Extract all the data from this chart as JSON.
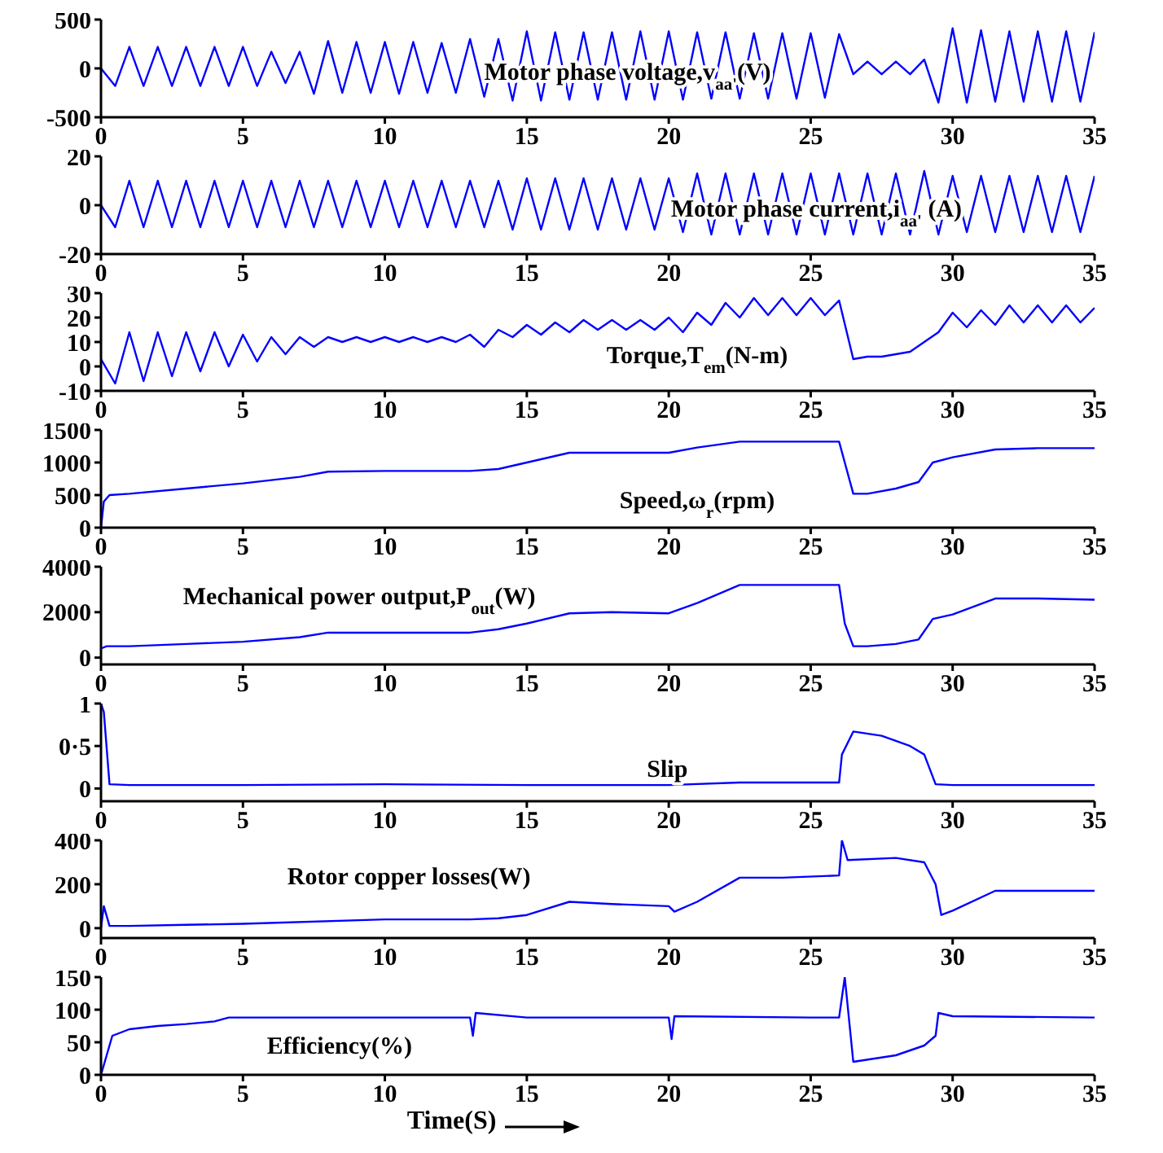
{
  "chart_data": [
    {
      "type": "line",
      "x": [
        0,
        0.5,
        1,
        1.5,
        2,
        2.5,
        3,
        3.5,
        4,
        4.5,
        5,
        5.5,
        6,
        6.5,
        7,
        7.5,
        8,
        8.5,
        9,
        9.5,
        10,
        10.5,
        11,
        11.5,
        12,
        12.5,
        13,
        13.5,
        14,
        14.5,
        15,
        15.5,
        16,
        16.5,
        17,
        17.5,
        18,
        18.5,
        19,
        19.5,
        20,
        20.5,
        21,
        21.5,
        22,
        22.5,
        23,
        23.5,
        24,
        24.5,
        25,
        25.5,
        26,
        26.5,
        27,
        27.5,
        28,
        28.5,
        29,
        29.5,
        30,
        30.5,
        31,
        31.5,
        32,
        32.5,
        33,
        33.5,
        34,
        34.5,
        35
      ],
      "series": [
        {
          "name": "Motor phase voltage,v$_{aa'}$(V)",
          "color": "#0000ff",
          "values": [
            0,
            -180,
            220,
            -180,
            220,
            -180,
            220,
            -180,
            220,
            -180,
            220,
            -180,
            170,
            -150,
            170,
            -260,
            280,
            -250,
            270,
            -250,
            270,
            -260,
            270,
            -250,
            260,
            -250,
            300,
            -290,
            300,
            -330,
            380,
            -330,
            370,
            -320,
            370,
            -320,
            370,
            -320,
            380,
            -320,
            380,
            -320,
            370,
            -310,
            370,
            -310,
            360,
            -310,
            360,
            -310,
            360,
            -300,
            350,
            -60,
            70,
            -60,
            70,
            -60,
            90,
            -350,
            410,
            -350,
            390,
            -340,
            380,
            -340,
            380,
            -340,
            380,
            -340,
            370
          ]
        }
      ],
      "xlim": [
        0,
        35
      ],
      "xticks": [
        0,
        5,
        10,
        15,
        20,
        25,
        30,
        35
      ],
      "ylim": [
        -500,
        500
      ],
      "yticks": [
        -500,
        0,
        500
      ]
    },
    {
      "type": "line",
      "x": [
        0,
        0.5,
        1,
        1.5,
        2,
        2.5,
        3,
        3.5,
        4,
        4.5,
        5,
        5.5,
        6,
        6.5,
        7,
        7.5,
        8,
        8.5,
        9,
        9.5,
        10,
        10.5,
        11,
        11.5,
        12,
        12.5,
        13,
        13.5,
        14,
        14.5,
        15,
        15.5,
        16,
        16.5,
        17,
        17.5,
        18,
        18.5,
        19,
        19.5,
        20,
        20.5,
        21,
        21.5,
        22,
        22.5,
        23,
        23.5,
        24,
        24.5,
        25,
        25.5,
        26,
        26.5,
        27,
        27.5,
        28,
        28.5,
        29,
        29.5,
        30,
        30.5,
        31,
        31.5,
        32,
        32.5,
        33,
        33.5,
        34,
        34.5,
        35
      ],
      "series": [
        {
          "name": "Motor phase current,i$_{aa'}$ (A)",
          "color": "#0000ff",
          "values": [
            0,
            -9,
            10,
            -9,
            10,
            -9,
            10,
            -9,
            10,
            -9,
            10,
            -9,
            10,
            -9,
            10,
            -9,
            10,
            -9,
            10,
            -9,
            10,
            -9,
            10,
            -9,
            10,
            -9,
            10,
            -9,
            10,
            -10,
            11,
            -10,
            11,
            -10,
            11,
            -10,
            11,
            -10,
            11,
            -10,
            11,
            -11,
            13,
            -12,
            13,
            -12,
            13,
            -12,
            13,
            -12,
            13,
            -12,
            13,
            -12,
            13,
            -12,
            13,
            -12,
            14,
            -12,
            12,
            -11,
            12,
            -11,
            12,
            -11,
            12,
            -11,
            12,
            -11,
            12
          ]
        }
      ],
      "xlim": [
        0,
        35
      ],
      "xticks": [
        0,
        5,
        10,
        15,
        20,
        25,
        30,
        35
      ],
      "ylim": [
        -20,
        20
      ],
      "yticks": [
        -20,
        0,
        20
      ]
    },
    {
      "type": "line",
      "x": [
        0,
        0.5,
        1,
        1.5,
        2,
        2.5,
        3,
        3.5,
        4,
        4.5,
        5,
        5.5,
        6,
        6.5,
        7,
        7.5,
        8,
        8.5,
        9,
        9.5,
        10,
        10.5,
        11,
        11.5,
        12,
        12.5,
        13,
        13.5,
        14,
        14.5,
        15,
        15.5,
        16,
        16.5,
        17,
        17.5,
        18,
        18.5,
        19,
        19.5,
        20,
        20.5,
        21,
        21.5,
        22,
        22.5,
        23,
        23.5,
        24,
        24.5,
        25,
        25.5,
        26,
        26.5,
        27,
        27.5,
        28,
        28.5,
        29,
        29.5,
        30,
        30.5,
        31,
        31.5,
        32,
        32.5,
        33,
        33.5,
        34,
        34.5,
        35
      ],
      "series": [
        {
          "name": "Torque,T$_{em}$(N-m)",
          "color": "#0000ff",
          "values": [
            3,
            -7,
            14,
            -6,
            14,
            -4,
            14,
            -2,
            14,
            0,
            13,
            2,
            12,
            5,
            12,
            8,
            12,
            10,
            12,
            10,
            12,
            10,
            12,
            10,
            12,
            10,
            13,
            8,
            15,
            12,
            17,
            13,
            18,
            14,
            19,
            15,
            19,
            15,
            19,
            15,
            20,
            14,
            22,
            17,
            26,
            20,
            28,
            21,
            28,
            21,
            28,
            21,
            27,
            3,
            4,
            4,
            5,
            6,
            10,
            14,
            22,
            16,
            23,
            17,
            25,
            18,
            25,
            18,
            25,
            18,
            24
          ]
        }
      ],
      "xlim": [
        0,
        35
      ],
      "xticks": [
        0,
        5,
        10,
        15,
        20,
        25,
        30,
        35
      ],
      "ylim": [
        -10,
        30
      ],
      "yticks": [
        -10,
        0,
        10,
        20,
        30
      ]
    },
    {
      "type": "line",
      "x": [
        0,
        0.1,
        0.3,
        1,
        3,
        5,
        7,
        8,
        10,
        13,
        14,
        15,
        16.5,
        18,
        20,
        21,
        22.5,
        24,
        26,
        26.2,
        26.5,
        27,
        28,
        28.8,
        29.3,
        30,
        31.5,
        33,
        35
      ],
      "series": [
        {
          "name": "Speed,ω$_{r}$(rpm)",
          "color": "#0000ff",
          "values": [
            0,
            400,
            500,
            520,
            600,
            680,
            780,
            860,
            870,
            870,
            900,
            1000,
            1150,
            1150,
            1150,
            1230,
            1320,
            1320,
            1320,
            1000,
            520,
            520,
            600,
            700,
            1000,
            1080,
            1200,
            1220,
            1220
          ]
        }
      ],
      "xlim": [
        0,
        35
      ],
      "xticks": [
        0,
        5,
        10,
        15,
        20,
        25,
        30,
        35
      ],
      "ylim": [
        0,
        1500
      ],
      "yticks": [
        0,
        500,
        1000,
        1500
      ]
    },
    {
      "type": "line",
      "x": [
        0,
        0.2,
        1,
        3,
        5,
        7,
        8,
        10,
        13,
        14,
        15,
        16.5,
        18,
        20,
        21,
        22.5,
        24,
        26,
        26.2,
        26.5,
        27,
        28,
        28.8,
        29.3,
        30,
        31.5,
        33,
        35
      ],
      "series": [
        {
          "name": "Mechanical power output,P$_{out}$(W)",
          "color": "#0000ff",
          "values": [
            400,
            500,
            500,
            600,
            700,
            900,
            1100,
            1100,
            1100,
            1250,
            1500,
            1950,
            2000,
            1950,
            2400,
            3200,
            3200,
            3200,
            1500,
            500,
            500,
            600,
            800,
            1700,
            1900,
            2600,
            2600,
            2550
          ]
        }
      ],
      "xlim": [
        0,
        35
      ],
      "xticks": [
        0,
        5,
        10,
        15,
        20,
        25,
        30,
        35
      ],
      "ylim": [
        -300,
        4000
      ],
      "yticks": [
        0,
        2000,
        4000
      ]
    },
    {
      "type": "line",
      "x": [
        0,
        0.1,
        0.3,
        1,
        5,
        10,
        15,
        20,
        22.5,
        26,
        26.1,
        26.5,
        27.5,
        28.5,
        29,
        29.4,
        30,
        35
      ],
      "series": [
        {
          "name": "Slip",
          "color": "#0000ff",
          "values": [
            1,
            0.9,
            0.05,
            0.04,
            0.04,
            0.05,
            0.04,
            0.04,
            0.07,
            0.07,
            0.4,
            0.67,
            0.62,
            0.5,
            0.4,
            0.05,
            0.04,
            0.04
          ]
        }
      ],
      "xlim": [
        0,
        35
      ],
      "xticks": [
        0,
        5,
        10,
        15,
        20,
        25,
        30,
        35
      ],
      "ylim": [
        -0.15,
        1
      ],
      "yticks": [
        0,
        {
          "value": 0.5,
          "label": "0·5"
        },
        1
      ]
    },
    {
      "type": "line",
      "x": [
        0,
        0.1,
        0.3,
        1,
        3,
        5,
        10,
        13,
        14,
        15,
        16.5,
        18,
        20,
        20.2,
        21,
        22.5,
        24,
        26,
        26.1,
        26.3,
        28,
        29,
        29.4,
        29.6,
        30,
        31.5,
        33,
        35
      ],
      "series": [
        {
          "name": "Rotor copper losses(W)",
          "color": "#0000ff",
          "values": [
            0,
            100,
            10,
            10,
            15,
            20,
            40,
            40,
            45,
            60,
            120,
            110,
            100,
            75,
            120,
            230,
            230,
            240,
            400,
            310,
            320,
            300,
            200,
            60,
            80,
            170,
            170,
            170
          ]
        }
      ],
      "xlim": [
        0,
        35
      ],
      "xticks": [
        0,
        5,
        10,
        15,
        20,
        25,
        30,
        35
      ],
      "ylim": [
        -45,
        400
      ],
      "yticks": [
        0,
        200,
        400
      ]
    },
    {
      "type": "line",
      "x": [
        0,
        0.2,
        0.4,
        1,
        2,
        3,
        4,
        4.5,
        10,
        13,
        13.1,
        13.2,
        15,
        20,
        20.1,
        20.2,
        25,
        26,
        26.2,
        26.5,
        28,
        29,
        29.4,
        29.5,
        30,
        35
      ],
      "series": [
        {
          "name": "Efficiency(%)",
          "color": "#0000ff",
          "values": [
            0,
            30,
            60,
            70,
            75,
            78,
            82,
            88,
            88,
            88,
            60,
            95,
            88,
            88,
            55,
            90,
            88,
            88,
            150,
            20,
            30,
            45,
            60,
            95,
            90,
            88
          ]
        }
      ],
      "xlim": [
        0,
        35
      ],
      "xticks": [
        0,
        5,
        10,
        15,
        20,
        25,
        30,
        35
      ],
      "ylim": [
        0,
        150
      ],
      "yticks": [
        0,
        50,
        100,
        150
      ],
      "xlabel": "Time(S)"
    }
  ]
}
